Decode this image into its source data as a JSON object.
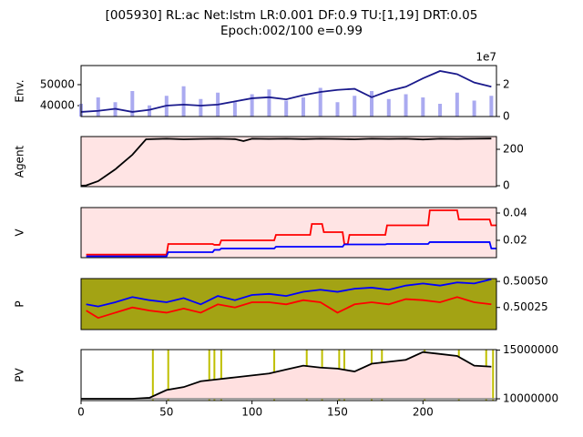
{
  "title": [
    "[005930] RL:ac Net:lstm LR:0.001 DF:0.9 TU:[1,19] DRT:0.05",
    "Epoch:002/100 e=0.99"
  ],
  "chart_data": [
    {
      "type": "line",
      "ylabel": "Env.",
      "xlim": [
        0,
        243
      ],
      "ylim": [
        34800,
        59100
      ],
      "yticks": [
        40000,
        50000
      ],
      "y2lim": [
        0,
        3.2
      ],
      "y2ticks": [
        0,
        2
      ],
      "y2_offset_label": "1e7",
      "background": "#ffffff",
      "x": [
        0,
        10,
        20,
        30,
        40,
        50,
        60,
        70,
        80,
        90,
        100,
        110,
        120,
        130,
        140,
        150,
        160,
        170,
        180,
        190,
        200,
        210,
        220,
        230,
        240
      ],
      "series": [
        {
          "name": "volume",
          "type": "bar",
          "axis": "y2",
          "color": "#aaaaf0",
          "values": [
            0.8,
            1.2,
            0.9,
            1.6,
            0.7,
            1.3,
            1.9,
            1.1,
            1.5,
            0.9,
            1.4,
            1.7,
            1.0,
            1.2,
            1.8,
            0.9,
            1.3,
            1.6,
            1.1,
            1.4,
            1.2,
            0.8,
            1.5,
            1.0,
            1.3
          ]
        },
        {
          "name": "close",
          "type": "line",
          "color": "#1a1a8c",
          "values": [
            37000,
            37500,
            38500,
            37000,
            38000,
            40000,
            40500,
            40000,
            40500,
            42000,
            43500,
            44000,
            43000,
            45000,
            46500,
            47500,
            48000,
            44000,
            47000,
            49000,
            53000,
            56500,
            55000,
            51000,
            49000
          ]
        }
      ]
    },
    {
      "type": "line",
      "ylabel": "Agent",
      "xlim": [
        0,
        243
      ],
      "ylim": [
        -5,
        270
      ],
      "yticks": [
        0,
        200
      ],
      "background": "#ffe4e4",
      "x": [
        0,
        3,
        10,
        20,
        30,
        38,
        50,
        60,
        70,
        80,
        90,
        95,
        100,
        110,
        120,
        130,
        140,
        150,
        160,
        170,
        180,
        190,
        200,
        210,
        220,
        230,
        240
      ],
      "series": [
        {
          "name": "stocks",
          "type": "line",
          "color": "#000000",
          "values": [
            0,
            2,
            25,
            90,
            170,
            255,
            258,
            255,
            257,
            258,
            256,
            245,
            258,
            257,
            258,
            256,
            258,
            257,
            255,
            258,
            257,
            258,
            254,
            258,
            257,
            258,
            259
          ]
        }
      ]
    },
    {
      "type": "line",
      "ylabel": "V",
      "xlim": [
        0,
        243
      ],
      "ylim": [
        0.0073,
        0.044
      ],
      "yticks": [
        0.02,
        0.04
      ],
      "background": "#ffe4e4",
      "x": [
        3,
        50,
        51,
        77,
        78,
        81,
        82,
        113,
        114,
        134,
        135,
        141,
        142,
        153,
        154,
        156,
        157,
        178,
        179,
        203,
        204,
        220,
        221,
        239,
        240,
        243
      ],
      "series": [
        {
          "name": "value_buy",
          "type": "line",
          "color": "#ff0000",
          "values": [
            0.0095,
            0.0095,
            0.0173,
            0.0173,
            0.0167,
            0.0167,
            0.02,
            0.02,
            0.024,
            0.024,
            0.032,
            0.032,
            0.026,
            0.026,
            0.0173,
            0.0173,
            0.024,
            0.024,
            0.031,
            0.031,
            0.042,
            0.042,
            0.0353,
            0.0353,
            0.031,
            0.031
          ]
        },
        {
          "name": "value_sell",
          "type": "line",
          "color": "#0000ff",
          "values": [
            0.0083,
            0.0083,
            0.0113,
            0.0113,
            0.013,
            0.013,
            0.014,
            0.014,
            0.0153,
            0.0153,
            0.0153,
            0.0153,
            0.0153,
            0.0153,
            0.017,
            0.017,
            0.017,
            0.017,
            0.0173,
            0.0173,
            0.0187,
            0.0187,
            0.0187,
            0.0187,
            0.014,
            0.014
          ]
        }
      ]
    },
    {
      "type": "line",
      "ylabel": "P",
      "xlim": [
        0,
        243
      ],
      "ylim": [
        0.500038,
        0.500527
      ],
      "yticks": [
        {
          "value": 0.5005,
          "label": "0.50050"
        },
        {
          "value": 0.50025,
          "label": "0.50025"
        }
      ],
      "background": "#a3a314",
      "x": [
        3,
        10,
        20,
        30,
        40,
        50,
        60,
        70,
        80,
        90,
        100,
        110,
        120,
        130,
        140,
        150,
        160,
        170,
        180,
        190,
        200,
        210,
        220,
        230,
        240
      ],
      "series": [
        {
          "name": "policy_buy",
          "type": "line",
          "color": "#0000ff",
          "values": [
            0.50028,
            0.50026,
            0.5003,
            0.50035,
            0.50032,
            0.5003,
            0.50034,
            0.50028,
            0.50036,
            0.50032,
            0.50037,
            0.50038,
            0.50036,
            0.5004,
            0.50042,
            0.5004,
            0.50043,
            0.50044,
            0.50042,
            0.50046,
            0.50048,
            0.50046,
            0.50049,
            0.50048,
            0.50052
          ]
        },
        {
          "name": "policy_sell",
          "type": "line",
          "color": "#ff0000",
          "values": [
            0.50022,
            0.50015,
            0.5002,
            0.50025,
            0.50022,
            0.5002,
            0.50024,
            0.5002,
            0.50028,
            0.50025,
            0.5003,
            0.5003,
            0.50028,
            0.50032,
            0.5003,
            0.5002,
            0.50028,
            0.5003,
            0.50028,
            0.50033,
            0.50032,
            0.5003,
            0.50035,
            0.5003,
            0.50028
          ]
        }
      ]
    },
    {
      "type": "line",
      "ylabel": "PV",
      "xlim": [
        0,
        243
      ],
      "ylim": [
        9815000,
        15050000
      ],
      "yticks": [
        10000000,
        15000000
      ],
      "xticks": [
        0,
        50,
        100,
        150,
        200
      ],
      "background": "#ffffff",
      "hline": 10000000,
      "hline_color": "#888888",
      "fill_color": "#ffe0e0",
      "vlines": [
        42,
        51,
        75,
        78,
        82,
        113,
        132,
        141,
        151,
        154,
        170,
        176,
        201,
        221,
        237,
        241
      ],
      "vline_color": "#bfbf00",
      "x": [
        0,
        10,
        20,
        30,
        40,
        50,
        60,
        70,
        80,
        90,
        100,
        110,
        120,
        130,
        140,
        150,
        160,
        170,
        180,
        190,
        200,
        210,
        220,
        230,
        240
      ],
      "series": [
        {
          "name": "portfolio_value",
          "type": "line",
          "color": "#000000",
          "values": [
            10000000,
            10000000,
            10000000,
            10000000,
            10100000,
            10900000,
            11200000,
            11800000,
            12000000,
            12200000,
            12400000,
            12600000,
            13000000,
            13400000,
            13200000,
            13100000,
            12800000,
            13600000,
            13800000,
            14000000,
            14800000,
            14600000,
            14400000,
            13400000,
            13300000
          ]
        }
      ]
    }
  ]
}
